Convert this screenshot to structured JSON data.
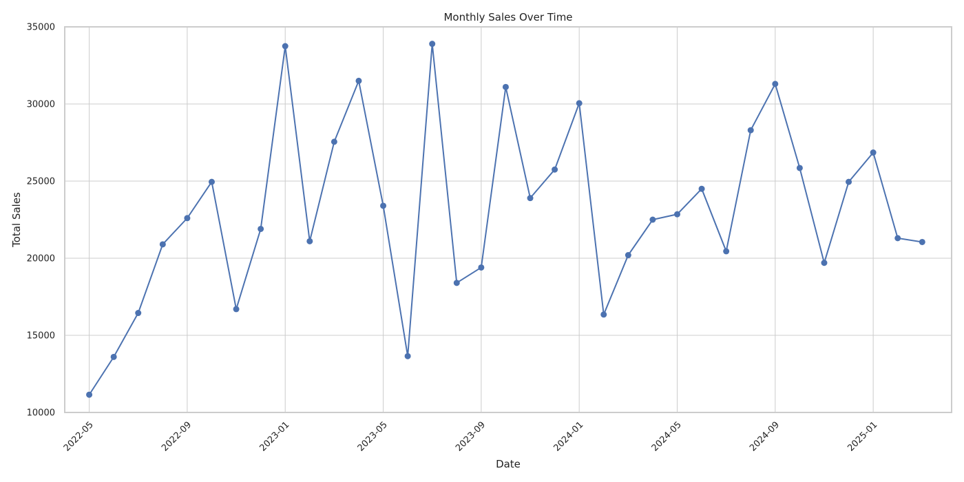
{
  "chart_data": {
    "type": "line",
    "title": "Monthly Sales Over Time",
    "xlabel": "Date",
    "ylabel": "Total Sales",
    "xlim": [
      "2022-04",
      "2025-04"
    ],
    "ylim": [
      10000,
      35000
    ],
    "grid": true,
    "marker": "circle",
    "color": "#4c72b0",
    "x_tick_labels": [
      "2022-05",
      "2022-09",
      "2023-01",
      "2023-05",
      "2023-09",
      "2024-01",
      "2024-05",
      "2024-09",
      "2025-01"
    ],
    "y_tick_labels": [
      "10000",
      "15000",
      "20000",
      "25000",
      "30000",
      "35000"
    ],
    "x": [
      "2022-05",
      "2022-06",
      "2022-07",
      "2022-08",
      "2022-09",
      "2022-10",
      "2022-11",
      "2022-12",
      "2023-01",
      "2023-02",
      "2023-03",
      "2023-04",
      "2023-05",
      "2023-06",
      "2023-07",
      "2023-08",
      "2023-09",
      "2023-10",
      "2023-11",
      "2023-12",
      "2024-01",
      "2024-02",
      "2024-03",
      "2024-04",
      "2024-05",
      "2024-06",
      "2024-07",
      "2024-08",
      "2024-09",
      "2024-10",
      "2024-11",
      "2024-12",
      "2025-01",
      "2025-02",
      "2025-03"
    ],
    "y": [
      11150,
      13600,
      16450,
      20900,
      22600,
      24950,
      16700,
      21900,
      33750,
      21100,
      27550,
      31500,
      23400,
      13650,
      33900,
      18400,
      19400,
      31100,
      23900,
      25750,
      30050,
      16350,
      20200,
      22500,
      22850,
      24500,
      20450,
      28300,
      31300,
      25850,
      19700,
      24950,
      26850,
      21300,
      21050
    ]
  }
}
